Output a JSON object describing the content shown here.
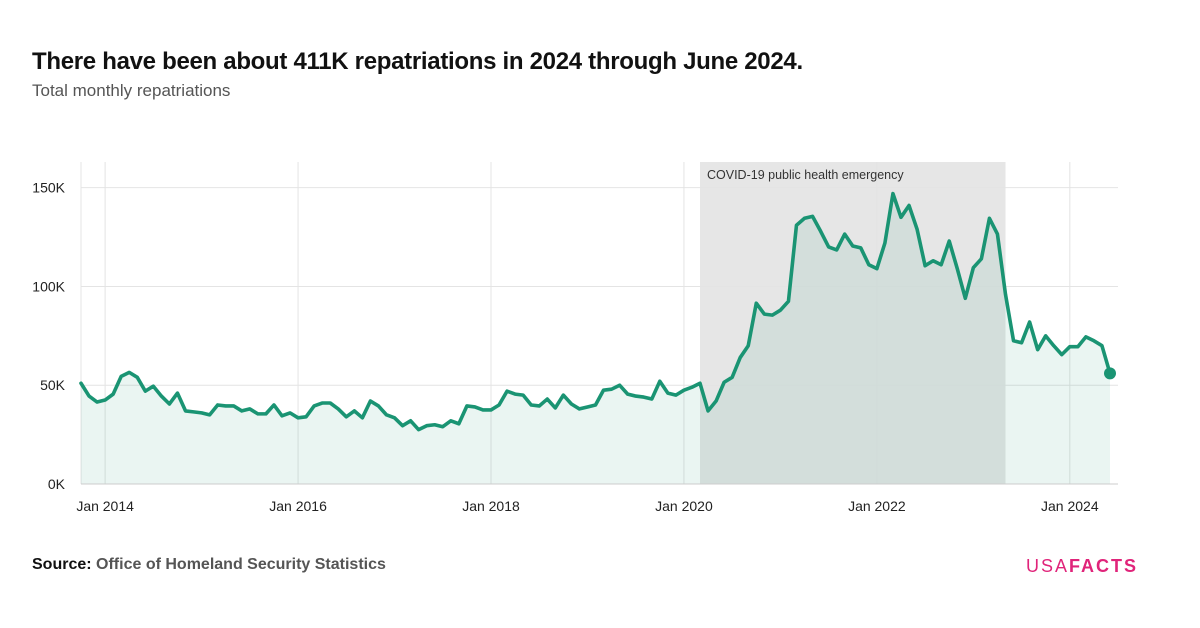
{
  "title": "There have been about 411K repatriations in 2024 through June 2024.",
  "subtitle": "Total monthly repatriations",
  "source": {
    "label": "Source:",
    "text": "Office of Homeland Security Statistics"
  },
  "logo": {
    "left": "USA",
    "right": "FACTS"
  },
  "colors": {
    "line": "#1a9473",
    "area": "#e8f4ef",
    "shade": "#e6e6e6",
    "logo": "#e0247a"
  },
  "chart_data": {
    "type": "area",
    "title": "There have been about 411K repatriations in 2024 through June 2024.",
    "subtitle": "Total monthly repatriations",
    "start": "2013-10",
    "frequency": "monthly",
    "values": [
      51000,
      44500,
      41500,
      42500,
      45500,
      54500,
      56500,
      54000,
      47000,
      49500,
      44500,
      40500,
      46000,
      37000,
      36500,
      36000,
      35000,
      40000,
      39500,
      39500,
      37000,
      38000,
      35500,
      35500,
      40000,
      34500,
      36000,
      33500,
      34000,
      39500,
      41000,
      41000,
      38000,
      34000,
      37000,
      33500,
      42000,
      39500,
      35000,
      33500,
      29500,
      32000,
      27500,
      29500,
      30000,
      29000,
      32000,
      30500,
      39500,
      39000,
      37500,
      37500,
      40000,
      47000,
      45500,
      45000,
      40000,
      39500,
      43000,
      38500,
      45000,
      40500,
      38000,
      39000,
      40000,
      47500,
      48000,
      50000,
      45500,
      44500,
      44000,
      43000,
      52000,
      46000,
      45000,
      47500,
      49000,
      51000,
      37000,
      42000,
      51500,
      54000,
      64000,
      70000,
      91500,
      86000,
      85500,
      88000,
      92500,
      131000,
      134500,
      135500,
      128000,
      120000,
      118500,
      126500,
      120500,
      119500,
      111000,
      109000,
      122000,
      147000,
      135000,
      141000,
      129000,
      110500,
      113000,
      111000,
      123000,
      109000,
      94000,
      109500,
      114000,
      134500,
      126500,
      96000,
      72500,
      71500,
      82000,
      68000,
      75000,
      70000,
      65500,
      69500,
      69500,
      74500,
      72500,
      70000,
      56000
    ],
    "highlight_last": true,
    "x_ticks": [
      {
        "label": "Jan 2014",
        "date": "2014-01"
      },
      {
        "label": "Jan 2016",
        "date": "2016-01"
      },
      {
        "label": "Jan 2018",
        "date": "2018-01"
      },
      {
        "label": "Jan 2020",
        "date": "2020-01"
      },
      {
        "label": "Jan 2022",
        "date": "2022-01"
      },
      {
        "label": "Jan 2024",
        "date": "2024-01"
      }
    ],
    "y_ticks": [
      {
        "label": "0K",
        "value": 0
      },
      {
        "label": "50K",
        "value": 50000
      },
      {
        "label": "100K",
        "value": 100000
      },
      {
        "label": "150K",
        "value": 150000
      }
    ],
    "ylim": [
      0,
      163000
    ],
    "grid": true,
    "annotation": {
      "label": "COVID-19 public health emergency",
      "start": "2020-03",
      "end": "2023-05"
    }
  }
}
